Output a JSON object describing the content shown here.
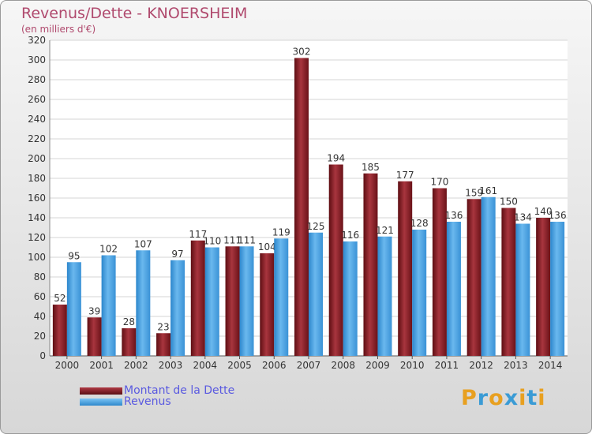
{
  "chart_data": {
    "type": "bar",
    "title": "Revenus/Dette - KNOERSHEIM",
    "subtitle": "(en milliers d'€)",
    "categories": [
      "2000",
      "2001",
      "2002",
      "2003",
      "2004",
      "2005",
      "2006",
      "2007",
      "2008",
      "2009",
      "2010",
      "2011",
      "2012",
      "2013",
      "2014"
    ],
    "series": [
      {
        "name": "Montant de la Dette",
        "color": "#7a1a1f",
        "values": [
          52,
          39,
          28,
          23,
          117,
          111,
          104,
          302,
          194,
          185,
          177,
          170,
          159,
          150,
          140
        ]
      },
      {
        "name": "Revenus",
        "color": "#4aa0e0",
        "values": [
          95,
          102,
          107,
          97,
          110,
          111,
          119,
          125,
          116,
          121,
          128,
          136,
          161,
          134,
          136
        ]
      }
    ],
    "ylim": [
      0,
      320
    ],
    "yticks": [
      0,
      20,
      40,
      60,
      80,
      100,
      120,
      140,
      160,
      180,
      200,
      220,
      240,
      260,
      280,
      300,
      320
    ],
    "grid": true,
    "legend_position": "bottom-left"
  },
  "logo": {
    "text": "Proxiti",
    "letters": [
      "P",
      "r",
      "o",
      "x",
      "i",
      "t",
      "i"
    ],
    "colors": [
      "#e8a020",
      "#3a9bd5",
      "#e8a020",
      "#3a9bd5",
      "#e8a020",
      "#3a9bd5",
      "#e8a020"
    ]
  }
}
